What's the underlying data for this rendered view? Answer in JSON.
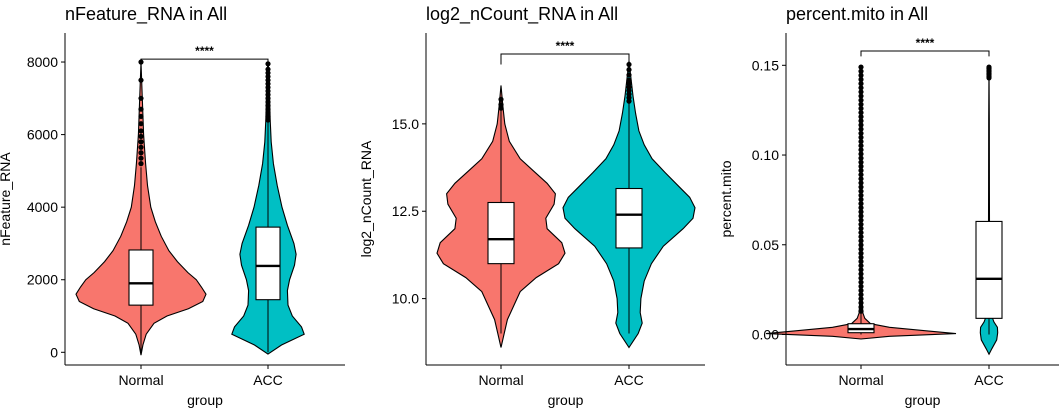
{
  "colors": {
    "Normal": "#F8766D",
    "ACC": "#00BFC4"
  },
  "chart_data": [
    {
      "type": "violin",
      "title": "nFeature_RNA in All",
      "xlabel": "group",
      "ylabel": "nFeature_RNA",
      "categories": [
        "Normal",
        "ACC"
      ],
      "ylim": [
        -350,
        8800
      ],
      "yticks": [
        0,
        2000,
        4000,
        6000,
        8000
      ],
      "ytick_labels": [
        "0",
        "2000",
        "4000",
        "6000",
        "8000"
      ],
      "significance": "****",
      "bracket_y": 8080,
      "bracket_tip": 7830,
      "groups": [
        {
          "name": "Normal",
          "range": [
            -80,
            8000
          ],
          "box": {
            "q1": 1300,
            "median": 1900,
            "q3": 2820,
            "lower": 0,
            "upper": 5100
          },
          "density": [
            [
              -80,
              0
            ],
            [
              200,
              0.03
            ],
            [
              500,
              0.08
            ],
            [
              800,
              0.2
            ],
            [
              1000,
              0.4
            ],
            [
              1200,
              0.73
            ],
            [
              1400,
              0.95
            ],
            [
              1600,
              1.0
            ],
            [
              1800,
              0.93
            ],
            [
              2000,
              0.85
            ],
            [
              2200,
              0.72
            ],
            [
              2500,
              0.56
            ],
            [
              2800,
              0.43
            ],
            [
              3200,
              0.31
            ],
            [
              3600,
              0.22
            ],
            [
              4000,
              0.15
            ],
            [
              4600,
              0.1
            ],
            [
              5200,
              0.07
            ],
            [
              6000,
              0.04
            ],
            [
              7000,
              0.02
            ],
            [
              8000,
              0
            ]
          ],
          "outliers": [
            5200,
            5350,
            5500,
            5650,
            5800,
            5950,
            6100,
            6300,
            6500,
            6700,
            7000,
            7500,
            8000
          ]
        },
        {
          "name": "ACC",
          "range": [
            -50,
            8000
          ],
          "box": {
            "q1": 1450,
            "median": 2380,
            "q3": 3450,
            "lower": 0,
            "upper": 6400
          },
          "density": [
            [
              -50,
              0
            ],
            [
              200,
              0.25
            ],
            [
              500,
              0.67
            ],
            [
              700,
              0.62
            ],
            [
              1000,
              0.45
            ],
            [
              1300,
              0.37
            ],
            [
              1700,
              0.36
            ],
            [
              2000,
              0.4
            ],
            [
              2400,
              0.49
            ],
            [
              2700,
              0.52
            ],
            [
              3000,
              0.48
            ],
            [
              3500,
              0.36
            ],
            [
              4000,
              0.26
            ],
            [
              4600,
              0.17
            ],
            [
              5200,
              0.1
            ],
            [
              5800,
              0.06
            ],
            [
              6400,
              0.04
            ],
            [
              7000,
              0.03
            ],
            [
              7600,
              0.025
            ],
            [
              8000,
              0
            ]
          ],
          "outliers": [
            6400,
            6500,
            6600,
            6700,
            6800,
            6900,
            7000,
            7100,
            7200,
            7300,
            7400,
            7500,
            7600,
            7700,
            7800,
            7950
          ]
        }
      ]
    },
    {
      "type": "violin",
      "title": "log2_nCount_RNA in All",
      "xlabel": "group",
      "ylabel": "log2_nCount_RNA",
      "categories": [
        "Normal",
        "ACC"
      ],
      "ylim": [
        8.1,
        17.6
      ],
      "yticks": [
        10.0,
        12.5,
        15.0
      ],
      "ytick_labels": [
        "10.0",
        "12.5",
        "15.0"
      ],
      "significance": "****",
      "bracket_y": 17.0,
      "bracket_tip": 16.7,
      "groups": [
        {
          "name": "Normal",
          "range": [
            8.6,
            16.1
          ],
          "box": {
            "q1": 11.0,
            "median": 11.7,
            "q3": 12.75,
            "lower": 9.0,
            "upper": 15.4
          },
          "density": [
            [
              8.6,
              0
            ],
            [
              9.0,
              0.05
            ],
            [
              9.4,
              0.1
            ],
            [
              9.8,
              0.2
            ],
            [
              10.2,
              0.3
            ],
            [
              10.6,
              0.55
            ],
            [
              11.0,
              0.9
            ],
            [
              11.3,
              1.0
            ],
            [
              11.6,
              0.95
            ],
            [
              12.0,
              0.72
            ],
            [
              12.3,
              0.7
            ],
            [
              12.7,
              0.83
            ],
            [
              13.0,
              0.85
            ],
            [
              13.3,
              0.72
            ],
            [
              13.7,
              0.48
            ],
            [
              14.0,
              0.3
            ],
            [
              14.5,
              0.13
            ],
            [
              15.0,
              0.06
            ],
            [
              15.5,
              0.03
            ],
            [
              16.1,
              0
            ]
          ],
          "outliers": [
            15.45,
            15.55,
            15.7
          ]
        },
        {
          "name": "ACC",
          "range": [
            8.6,
            16.8
          ],
          "box": {
            "q1": 11.45,
            "median": 12.4,
            "q3": 13.15,
            "lower": 9.0,
            "upper": 15.6
          },
          "density": [
            [
              8.6,
              0
            ],
            [
              9.0,
              0.14
            ],
            [
              9.3,
              0.2
            ],
            [
              9.6,
              0.17
            ],
            [
              10.0,
              0.18
            ],
            [
              10.5,
              0.23
            ],
            [
              11.0,
              0.34
            ],
            [
              11.5,
              0.52
            ],
            [
              12.0,
              0.82
            ],
            [
              12.3,
              0.97
            ],
            [
              12.6,
              1.0
            ],
            [
              12.9,
              0.92
            ],
            [
              13.2,
              0.76
            ],
            [
              13.6,
              0.55
            ],
            [
              14.0,
              0.35
            ],
            [
              14.4,
              0.23
            ],
            [
              14.8,
              0.15
            ],
            [
              15.3,
              0.1
            ],
            [
              15.8,
              0.06
            ],
            [
              16.3,
              0.03
            ],
            [
              16.8,
              0
            ]
          ],
          "outliers": [
            15.65,
            15.75,
            15.85,
            15.95,
            16.05,
            16.15,
            16.25,
            16.4,
            16.55,
            16.7
          ]
        }
      ]
    },
    {
      "type": "violin",
      "title": "percent.mito in All",
      "xlabel": "group",
      "ylabel": "percent.mito",
      "categories": [
        "Normal",
        "ACC"
      ],
      "ylim": [
        -0.017,
        0.168
      ],
      "yticks": [
        0.0,
        0.05,
        0.1,
        0.15
      ],
      "ytick_labels": [
        "0.00",
        "0.05",
        "0.10",
        "0.15"
      ],
      "significance": "****",
      "bracket_y": 0.158,
      "bracket_tip": 0.155,
      "groups": [
        {
          "name": "Normal",
          "range": [
            -0.0025,
            0.149
          ],
          "box": {
            "q1": 0.001,
            "median": 0.003,
            "q3": 0.006,
            "lower": 0.0,
            "upper": 0.013
          },
          "density": [
            [
              -0.0025,
              0
            ],
            [
              -0.001,
              0.3
            ],
            [
              0.0005,
              1.0
            ],
            [
              0.002,
              0.7
            ],
            [
              0.004,
              0.3
            ],
            [
              0.006,
              0.1
            ],
            [
              0.009,
              0.04
            ],
            [
              0.012,
              0.02
            ],
            [
              0.02,
              0.01
            ],
            [
              0.05,
              0.004
            ],
            [
              0.149,
              0
            ]
          ],
          "outliers_range": [
            0.013,
            0.149
          ],
          "outlier_count": 60
        },
        {
          "name": "ACC",
          "range": [
            -0.011,
            0.15
          ],
          "box": {
            "q1": 0.009,
            "median": 0.031,
            "q3": 0.063,
            "lower": 0.0,
            "upper": 0.143
          },
          "density": [
            [
              -0.011,
              0
            ],
            [
              -0.008,
              0.2
            ],
            [
              -0.003,
              0.55
            ],
            [
              0.001,
              0.62
            ],
            [
              0.004,
              0.6
            ],
            [
              0.007,
              0.35
            ],
            [
              0.012,
              0.12
            ],
            [
              0.02,
              0.06
            ],
            [
              0.04,
              0.04
            ],
            [
              0.08,
              0.03
            ],
            [
              0.12,
              0.02
            ],
            [
              0.15,
              0
            ]
          ],
          "outliers_range": [
            0.143,
            0.149
          ],
          "outlier_count": 8
        }
      ]
    }
  ]
}
